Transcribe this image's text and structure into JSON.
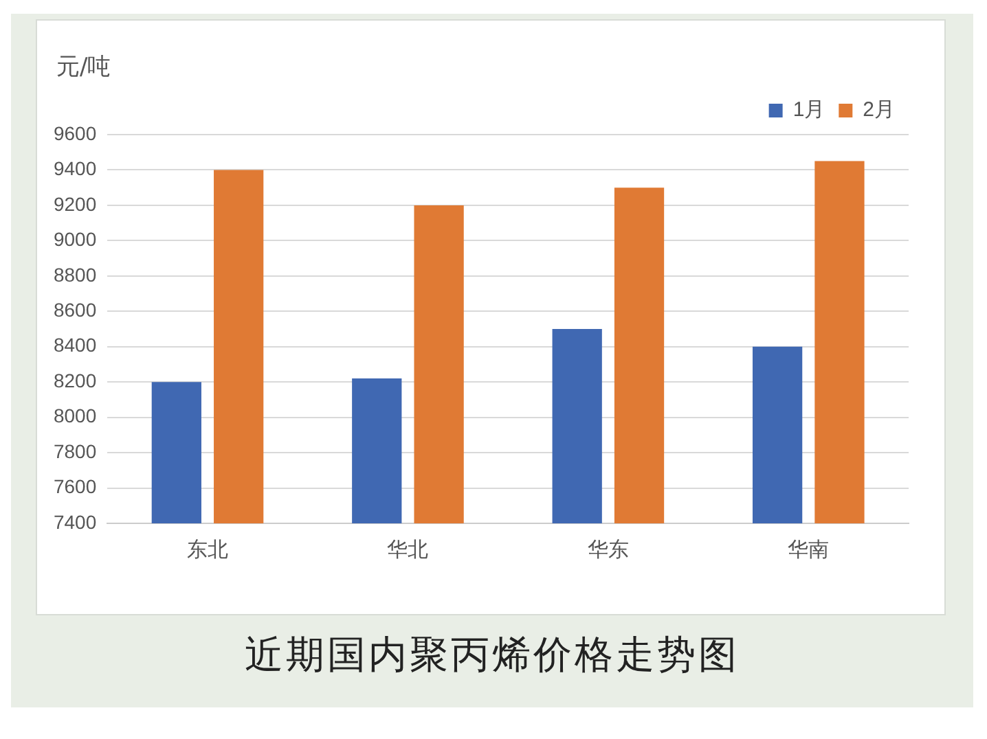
{
  "chart_data": {
    "type": "bar",
    "title": "近期国内聚丙烯价格走势图",
    "ylabel": "元/吨",
    "categories": [
      "东北",
      "华北",
      "华东",
      "华南"
    ],
    "series": [
      {
        "name": "1月",
        "color": "#4068b2",
        "values": [
          8200,
          8220,
          8500,
          8400
        ]
      },
      {
        "name": "2月",
        "color": "#e07a34",
        "values": [
          9400,
          9200,
          9300,
          9450
        ]
      }
    ],
    "ylim": [
      7400,
      9600
    ],
    "yticks": [
      7400,
      7600,
      7800,
      8000,
      8200,
      8400,
      8600,
      8800,
      9000,
      9200,
      9400,
      9600
    ],
    "grid": "y",
    "legend": "top right"
  }
}
